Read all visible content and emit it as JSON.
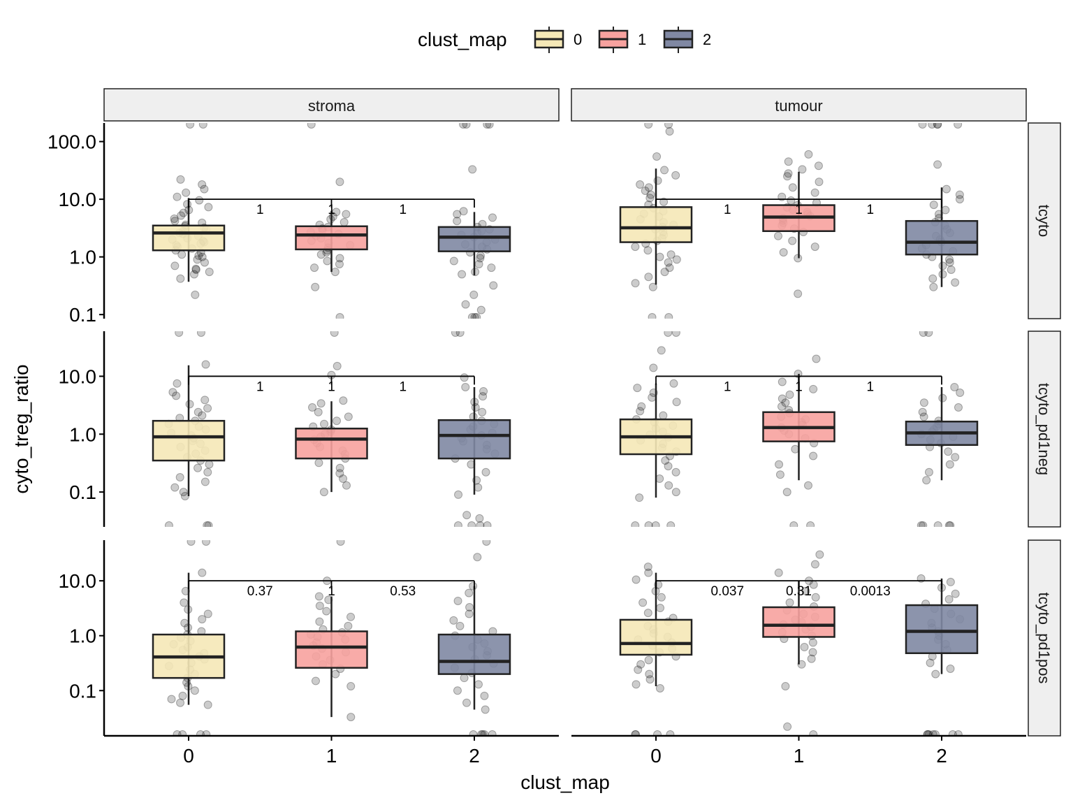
{
  "chart_data": {
    "type": "boxplot",
    "xlabel": "clust_map",
    "ylabel": "cyto_treg_ratio",
    "y_scale": "log10",
    "legend": {
      "title": "clust_map",
      "placement": "top",
      "entries": [
        {
          "label": "0",
          "color": "#F5E8B7"
        },
        {
          "label": "1",
          "color": "#F7A29F"
        },
        {
          "label": "2",
          "color": "#8088A3"
        }
      ]
    },
    "categories": [
      "0",
      "1",
      "2"
    ],
    "columns": [
      "stroma",
      "tumour"
    ],
    "rows": [
      "tcyto",
      "tcyto_pd1neg",
      "tcyto_pd1pos"
    ],
    "panels": [
      {
        "column": "stroma",
        "row": "tcyto",
        "ylim": [
          0.085,
          210
        ],
        "y_ticks": [
          0.1,
          1.0,
          10.0,
          100.0
        ],
        "y_tick_labels": [
          "0.1",
          "1.0",
          "10.0",
          "100.0"
        ],
        "bracket_y": 10.0,
        "p_values": [
          "1",
          "1",
          "1"
        ],
        "boxes": [
          {
            "category": "0",
            "whisker_low": 0.37,
            "q1": 1.3,
            "median": 2.6,
            "q3": 3.5,
            "whisker_high": 10.5,
            "points": [
              0.22,
              0.42,
              0.5,
              0.55,
              0.6,
              0.62,
              0.7,
              0.8,
              0.9,
              1.0,
              1.05,
              1.1,
              1.2,
              1.3,
              1.4,
              1.5,
              1.6,
              1.7,
              1.8,
              1.9,
              2.0,
              2.1,
              2.3,
              2.5,
              2.6,
              2.8,
              3.0,
              3.2,
              3.4,
              3.6,
              3.9,
              4.2,
              4.6,
              5.2,
              5.8,
              6.5,
              7.3,
              8.2,
              9.6,
              11,
              13,
              15,
              18,
              22,
              210,
              210
            ]
          },
          {
            "category": "1",
            "whisker_low": 0.55,
            "q1": 1.35,
            "median": 2.4,
            "q3": 3.4,
            "whisker_high": 6.3,
            "points": [
              0.08,
              0.3,
              0.55,
              0.65,
              0.75,
              0.85,
              0.95,
              1.1,
              1.2,
              1.3,
              1.45,
              1.6,
              1.75,
              1.9,
              2.1,
              2.3,
              2.5,
              2.7,
              2.9,
              3.1,
              3.3,
              3.6,
              4.0,
              4.5,
              5.0,
              5.5,
              6.0,
              20,
              210
            ]
          },
          {
            "category": "2",
            "whisker_low": 0.48,
            "q1": 1.25,
            "median": 2.2,
            "q3": 3.3,
            "whisker_high": 6.0,
            "points": [
              0.085,
              0.085,
              0.085,
              0.12,
              0.15,
              0.22,
              0.32,
              0.5,
              0.55,
              0.65,
              0.75,
              0.85,
              0.95,
              1.05,
              1.2,
              1.35,
              1.5,
              1.65,
              1.8,
              2.0,
              2.2,
              2.4,
              2.6,
              2.8,
              3.0,
              3.3,
              3.7,
              4.2,
              4.8,
              5.5,
              6.2,
              33,
              210,
              210,
              210,
              210
            ]
          }
        ]
      },
      {
        "column": "tumour",
        "row": "tcyto",
        "ylim": [
          0.085,
          210
        ],
        "y_ticks": [
          0.1,
          1.0,
          10.0,
          100.0
        ],
        "y_tick_labels": [
          "0.1",
          "1.0",
          "10.0",
          "100.0"
        ],
        "bracket_y": 10.0,
        "p_values": [
          "1",
          "1",
          "1"
        ],
        "boxes": [
          {
            "category": "0",
            "whisker_low": 0.33,
            "q1": 1.8,
            "median": 3.2,
            "q3": 7.3,
            "whisker_high": 34,
            "points": [
              0.085,
              0.085,
              0.3,
              0.35,
              0.45,
              0.55,
              0.65,
              0.8,
              0.9,
              1.0,
              1.1,
              1.3,
              1.5,
              1.7,
              1.9,
              2.1,
              2.4,
              2.7,
              3.0,
              3.3,
              3.6,
              4.0,
              4.5,
              5.0,
              5.6,
              6.2,
              7.0,
              8.0,
              9.0,
              10.5,
              12,
              14,
              16,
              18,
              21,
              26,
              32,
              55,
              150,
              210,
              210
            ]
          },
          {
            "category": "1",
            "whisker_low": 0.95,
            "q1": 2.8,
            "median": 4.9,
            "q3": 7.9,
            "whisker_high": 30,
            "points": [
              0.23,
              0.95,
              1.2,
              1.5,
              1.9,
              2.3,
              2.7,
              3.1,
              3.5,
              3.9,
              4.3,
              4.7,
              5.1,
              5.5,
              6.0,
              6.6,
              7.2,
              7.9,
              8.7,
              9.5,
              11,
              13,
              16,
              20,
              25,
              28,
              33,
              38,
              45,
              60
            ]
          },
          {
            "category": "2",
            "whisker_low": 0.3,
            "q1": 1.1,
            "median": 1.8,
            "q3": 4.2,
            "whisker_high": 16,
            "points": [
              0.3,
              0.36,
              0.42,
              0.5,
              0.6,
              0.7,
              0.8,
              0.9,
              1.0,
              1.1,
              1.25,
              1.4,
              1.6,
              1.8,
              2.0,
              2.3,
              2.6,
              3.0,
              3.5,
              4.0,
              4.7,
              5.5,
              6.5,
              8.0,
              10,
              12,
              15,
              40,
              210,
              210,
              210,
              210,
              210
            ]
          }
        ]
      },
      {
        "column": "stroma",
        "row": "tcyto_pd1neg",
        "ylim": [
          0.025,
          60
        ],
        "y_ticks": [
          0.1,
          1.0,
          10.0
        ],
        "y_tick_labels": [
          "0.1",
          "1.0",
          "10.0"
        ],
        "bracket_y": 10.0,
        "p_values": [
          "1",
          "1",
          "1"
        ],
        "boxes": [
          {
            "category": "0",
            "whisker_low": 0.085,
            "q1": 0.35,
            "median": 0.9,
            "q3": 1.7,
            "whisker_high": 15.5,
            "points": [
              0.025,
              0.025,
              0.025,
              0.085,
              0.1,
              0.12,
              0.15,
              0.18,
              0.22,
              0.26,
              0.3,
              0.35,
              0.4,
              0.46,
              0.52,
              0.6,
              0.68,
              0.76,
              0.85,
              0.95,
              1.05,
              1.2,
              1.35,
              1.5,
              1.7,
              1.9,
              2.1,
              2.4,
              2.8,
              3.3,
              3.9,
              4.6,
              5.3,
              7.5,
              16,
              60,
              60
            ]
          },
          {
            "category": "1",
            "whisker_low": 0.1,
            "q1": 0.38,
            "median": 0.82,
            "q3": 1.25,
            "whisker_high": 3.7,
            "points": [
              0.1,
              0.13,
              0.17,
              0.21,
              0.26,
              0.32,
              0.38,
              0.45,
              0.52,
              0.6,
              0.7,
              0.8,
              0.9,
              1.0,
              1.1,
              1.2,
              1.35,
              1.5,
              1.7,
              2.0,
              2.4,
              2.9,
              3.4,
              3.8,
              10.5,
              15,
              60
            ]
          },
          {
            "category": "2",
            "whisker_low": 0.09,
            "q1": 0.38,
            "median": 0.95,
            "q3": 1.75,
            "whisker_high": 6.5,
            "points": [
              0.025,
              0.025,
              0.025,
              0.025,
              0.035,
              0.04,
              0.09,
              0.12,
              0.16,
              0.22,
              0.3,
              0.38,
              0.46,
              0.55,
              0.65,
              0.75,
              0.85,
              0.95,
              1.05,
              1.2,
              1.35,
              1.5,
              1.7,
              2.0,
              2.4,
              2.9,
              3.6,
              4.5,
              5.5,
              6.5,
              9.5,
              60,
              60
            ]
          }
        ]
      },
      {
        "column": "tumour",
        "row": "tcyto_pd1neg",
        "ylim": [
          0.025,
          60
        ],
        "y_ticks": [
          0.1,
          1.0,
          10.0
        ],
        "y_tick_labels": [
          "0.1",
          "1.0",
          "10.0"
        ],
        "bracket_y": 10.0,
        "p_values": [
          "1",
          "1",
          "1"
        ],
        "boxes": [
          {
            "category": "0",
            "whisker_low": 0.08,
            "q1": 0.45,
            "median": 0.9,
            "q3": 1.8,
            "whisker_high": 7.5,
            "points": [
              0.025,
              0.025,
              0.025,
              0.025,
              0.08,
              0.1,
              0.13,
              0.17,
              0.22,
              0.28,
              0.35,
              0.42,
              0.5,
              0.58,
              0.68,
              0.78,
              0.88,
              0.98,
              1.1,
              1.25,
              1.4,
              1.6,
              1.8,
              2.1,
              2.5,
              3.0,
              3.6,
              4.3,
              5.2,
              6.3,
              7.5,
              14,
              28,
              60,
              60
            ]
          },
          {
            "category": "1",
            "whisker_low": 0.16,
            "q1": 0.75,
            "median": 1.3,
            "q3": 2.4,
            "whisker_high": 11,
            "points": [
              0.025,
              0.025,
              0.1,
              0.13,
              0.2,
              0.3,
              0.42,
              0.55,
              0.7,
              0.85,
              1.0,
              1.15,
              1.3,
              1.45,
              1.6,
              1.8,
              2.0,
              2.3,
              2.6,
              3.0,
              3.5,
              4.1,
              4.8,
              6.0,
              8.0,
              11,
              20
            ]
          },
          {
            "category": "2",
            "whisker_low": 0.16,
            "q1": 0.65,
            "median": 1.05,
            "q3": 1.65,
            "whisker_high": 6.5,
            "points": [
              0.025,
              0.025,
              0.025,
              0.025,
              0.025,
              0.16,
              0.22,
              0.3,
              0.4,
              0.5,
              0.6,
              0.7,
              0.8,
              0.9,
              1.0,
              1.1,
              1.2,
              1.35,
              1.5,
              1.7,
              2.0,
              2.4,
              2.9,
              3.5,
              4.2,
              5.2,
              6.5,
              60,
              60
            ]
          }
        ]
      },
      {
        "column": "stroma",
        "row": "tcyto_pd1pos",
        "ylim": [
          0.015,
          55
        ],
        "y_ticks": [
          0.1,
          1.0,
          10.0
        ],
        "y_tick_labels": [
          "0.1",
          "1.0",
          "10.0"
        ],
        "bracket_y": 10.0,
        "p_values": [
          "0.37",
          "1",
          "0.53"
        ],
        "boxes": [
          {
            "category": "0",
            "whisker_low": 0.055,
            "q1": 0.17,
            "median": 0.41,
            "q3": 1.05,
            "whisker_high": 14,
            "points": [
              0.015,
              0.015,
              0.015,
              0.015,
              0.055,
              0.06,
              0.07,
              0.08,
              0.1,
              0.12,
              0.14,
              0.17,
              0.2,
              0.24,
              0.28,
              0.32,
              0.37,
              0.42,
              0.48,
              0.55,
              0.62,
              0.7,
              0.8,
              0.92,
              1.05,
              1.2,
              1.4,
              1.7,
              2.0,
              2.5,
              3.0,
              4.0,
              6.5,
              14,
              55,
              55
            ]
          },
          {
            "category": "1",
            "whisker_low": 0.033,
            "q1": 0.26,
            "median": 0.62,
            "q3": 1.2,
            "whisker_high": 5.2,
            "points": [
              0.033,
              0.12,
              0.15,
              0.2,
              0.25,
              0.3,
              0.36,
              0.42,
              0.5,
              0.58,
              0.66,
              0.75,
              0.85,
              0.95,
              1.05,
              1.15,
              1.3,
              1.5,
              1.8,
              2.2,
              2.8,
              3.5,
              4.5,
              5.2,
              10,
              55
            ]
          },
          {
            "category": "2",
            "whisker_low": 0.045,
            "q1": 0.2,
            "median": 0.34,
            "q3": 1.05,
            "whisker_high": 8,
            "points": [
              0.015,
              0.015,
              0.015,
              0.015,
              0.015,
              0.045,
              0.06,
              0.08,
              0.1,
              0.13,
              0.17,
              0.21,
              0.26,
              0.31,
              0.37,
              0.44,
              0.52,
              0.62,
              0.72,
              0.85,
              1.0,
              1.2,
              1.5,
              1.9,
              2.5,
              3.3,
              4.3,
              6,
              8,
              27,
              55
            ]
          }
        ]
      },
      {
        "column": "tumour",
        "row": "tcyto_pd1pos",
        "ylim": [
          0.015,
          55
        ],
        "y_ticks": [
          0.1,
          1.0,
          10.0
        ],
        "y_tick_labels": [
          "0.1",
          "1.0",
          "10.0"
        ],
        "bracket_y": 10.0,
        "p_values": [
          "0.037",
          "0.31",
          "0.0013"
        ],
        "boxes": [
          {
            "category": "0",
            "whisker_low": 0.12,
            "q1": 0.45,
            "median": 0.72,
            "q3": 1.95,
            "whisker_high": 14,
            "points": [
              0.015,
              0.015,
              0.015,
              0.015,
              0.11,
              0.13,
              0.16,
              0.2,
              0.24,
              0.3,
              0.36,
              0.42,
              0.5,
              0.58,
              0.66,
              0.75,
              0.85,
              0.95,
              1.1,
              1.3,
              1.5,
              1.8,
              2.1,
              2.6,
              3.2,
              4.0,
              5.0,
              6.5,
              8.5,
              10.5,
              14,
              18
            ]
          },
          {
            "category": "1",
            "whisker_low": 0.3,
            "q1": 0.95,
            "median": 1.55,
            "q3": 3.3,
            "whisker_high": 10,
            "points": [
              0.015,
              0.022,
              0.12,
              0.3,
              0.38,
              0.5,
              0.62,
              0.75,
              0.88,
              1.0,
              1.15,
              1.3,
              1.45,
              1.6,
              1.75,
              1.95,
              2.2,
              2.5,
              2.9,
              3.4,
              4.0,
              5.0,
              6.5,
              8.5,
              10,
              14,
              20,
              30
            ]
          },
          {
            "category": "2",
            "whisker_low": 0.2,
            "q1": 0.48,
            "median": 1.2,
            "q3": 3.6,
            "whisker_high": 11,
            "points": [
              0.015,
              0.015,
              0.015,
              0.015,
              0.015,
              0.015,
              0.015,
              0.2,
              0.25,
              0.32,
              0.42,
              0.55,
              0.7,
              0.85,
              1.0,
              1.2,
              1.4,
              1.7,
              2.0,
              2.5,
              3.1,
              3.8,
              4.6,
              5.8,
              7.5,
              9.5,
              11
            ]
          }
        ]
      }
    ]
  }
}
